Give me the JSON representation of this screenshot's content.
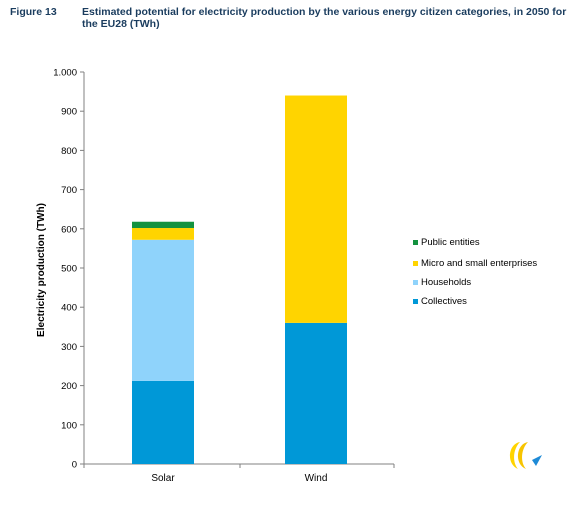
{
  "figure": {
    "label": "Figure 13",
    "title": "Estimated potential for electricity production by the various energy citizen categories, in 2050 for the EU28 (TWh)"
  },
  "colors": {
    "public_entities": "#13923f",
    "micro_small": "#ffd400",
    "households": "#8fd3fb",
    "collectives": "#0098d7"
  },
  "chart_data": {
    "type": "bar",
    "stacked": true,
    "categories": [
      "Solar",
      "Wind"
    ],
    "series": [
      {
        "name": "Collectives",
        "values": [
          212,
          360
        ]
      },
      {
        "name": "Households",
        "values": [
          360,
          0
        ]
      },
      {
        "name": "Micro and small enterprises",
        "values": [
          30,
          580
        ]
      },
      {
        "name": "Public entities",
        "values": [
          16,
          0
        ]
      }
    ],
    "legend_order": [
      "Public entities",
      "Micro and small enterprises",
      "Households",
      "Collectives"
    ],
    "ylabel": "Electricity production (TWh)",
    "xlabel": "",
    "ylim": [
      0,
      1000
    ],
    "yticks": [
      0,
      100,
      200,
      300,
      400,
      500,
      600,
      700,
      800,
      900,
      1000
    ],
    "ytick_labels": [
      "0",
      "100",
      "200",
      "300",
      "400",
      "500",
      "600",
      "700",
      "800",
      "900",
      "1.000"
    ],
    "grid": false,
    "legend_position": "right"
  }
}
